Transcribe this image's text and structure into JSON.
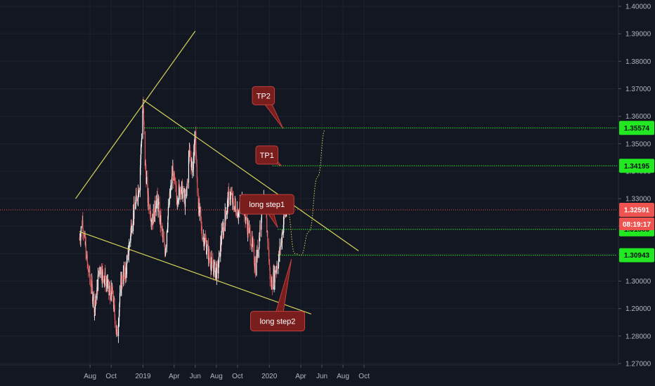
{
  "colors": {
    "background": "#131722",
    "grid": "#1e222d",
    "up": "#ffffff",
    "down": "#e05a5a",
    "trendline": "#d4d45a",
    "level_line": "#2ee62e",
    "price_line": "#ef5350",
    "callout_fill": "#7a1d1d",
    "callout_stroke": "#c04040",
    "badge_green": "#22e822",
    "badge_red": "#ef5350",
    "axis_text": "#b2b5be"
  },
  "chart_data": {
    "type": "candlestick",
    "y_axis_labels": [
      "1.40000",
      "1.39000",
      "1.38000",
      "1.37000",
      "1.36000",
      "1.35000",
      "1.34000",
      "1.33000",
      "1.32000",
      "1.31000",
      "1.30000",
      "1.29000",
      "1.28000",
      "1.27000"
    ],
    "x_axis_labels": [
      "Aug",
      "Oct",
      "2019",
      "Apr",
      "Jun",
      "Aug",
      "Oct",
      "2020",
      "Apr",
      "Jun",
      "Aug",
      "Oct"
    ],
    "ylim": [
      1.27,
      1.4
    ],
    "price_path": [
      [
        "2018-07-01",
        1.315
      ],
      [
        "2018-07-10",
        1.322
      ],
      [
        "2018-07-25",
        1.305
      ],
      [
        "2018-08-05",
        1.298
      ],
      [
        "2018-08-15",
        1.29
      ],
      [
        "2018-08-28",
        1.305
      ],
      [
        "2018-09-10",
        1.302
      ],
      [
        "2018-09-25",
        1.296
      ],
      [
        "2018-10-05",
        1.295
      ],
      [
        "2018-10-18",
        1.28
      ],
      [
        "2018-10-30",
        1.3
      ],
      [
        "2018-11-15",
        1.305
      ],
      [
        "2018-11-28",
        1.32
      ],
      [
        "2018-12-10",
        1.328
      ],
      [
        "2018-12-22",
        1.336
      ],
      [
        "2019-01-01",
        1.365
      ],
      [
        "2019-01-06",
        1.345
      ],
      [
        "2019-01-15",
        1.33
      ],
      [
        "2019-01-28",
        1.322
      ],
      [
        "2019-02-10",
        1.33
      ],
      [
        "2019-02-25",
        1.318
      ],
      [
        "2019-03-05",
        1.31
      ],
      [
        "2019-03-15",
        1.325
      ],
      [
        "2019-03-28",
        1.34
      ],
      [
        "2019-04-08",
        1.33
      ],
      [
        "2019-04-20",
        1.335
      ],
      [
        "2019-05-05",
        1.328
      ],
      [
        "2019-05-15",
        1.348
      ],
      [
        "2019-05-25",
        1.34
      ],
      [
        "2019-06-01",
        1.355
      ],
      [
        "2019-06-08",
        1.33
      ],
      [
        "2019-06-20",
        1.318
      ],
      [
        "2019-07-05",
        1.312
      ],
      [
        "2019-07-20",
        1.305
      ],
      [
        "2019-08-05",
        1.303
      ],
      [
        "2019-08-15",
        1.315
      ],
      [
        "2019-08-28",
        1.325
      ],
      [
        "2019-09-08",
        1.332
      ],
      [
        "2019-09-20",
        1.328
      ],
      [
        "2019-10-05",
        1.325
      ],
      [
        "2019-10-15",
        1.33
      ],
      [
        "2019-10-30",
        1.32
      ],
      [
        "2019-11-10",
        1.315
      ],
      [
        "2019-11-22",
        1.305
      ],
      [
        "2019-12-02",
        1.315
      ],
      [
        "2019-12-12",
        1.33
      ],
      [
        "2019-12-22",
        1.325
      ],
      [
        "2019-12-30",
        1.31
      ],
      [
        "2020-01-05",
        1.298
      ],
      [
        "2020-01-15",
        1.302
      ],
      [
        "2020-01-28",
        1.308
      ],
      [
        "2020-02-05",
        1.315
      ],
      [
        "2020-02-15",
        1.325
      ],
      [
        "2020-02-22",
        1.3259
      ]
    ],
    "trendlines": [
      {
        "from": [
          "2018-06-20",
          1.33
        ],
        "to": [
          "2019-06-01",
          1.391
        ]
      },
      {
        "from": [
          "2019-01-01",
          1.366
        ],
        "to": [
          "2020-09-15",
          1.311
        ]
      },
      {
        "from": [
          "2018-07-01",
          1.318
        ],
        "to": [
          "2020-05-01",
          1.288
        ]
      }
    ],
    "projection": [
      [
        "2020-02-22",
        1.3259
      ],
      [
        "2020-03-15",
        1.31
      ],
      [
        "2020-04-01",
        1.3094
      ],
      [
        "2020-04-25",
        1.318
      ],
      [
        "2020-05-20",
        1.338
      ],
      [
        "2020-06-10",
        1.355
      ]
    ],
    "levels": [
      {
        "price": 1.35574,
        "label": "1.35574",
        "from": "2019-01-05"
      },
      {
        "price": 1.34195,
        "label": "1.34195",
        "from": "2020-01-10"
      },
      {
        "price": 1.31885,
        "label": "1.31885",
        "from": "2020-01-25"
      },
      {
        "price": 1.30943,
        "label": "1.30943",
        "from": "2020-01-25"
      }
    ],
    "current_price": {
      "price": 1.32591,
      "label": "1.32591",
      "countdown": "08:19:17"
    },
    "annotations": [
      {
        "text": "TP2",
        "anchor": [
          "2019-12-15",
          1.3708
        ],
        "target": [
          "2020-02-10",
          1.3555
        ]
      },
      {
        "text": "TP1",
        "anchor": [
          "2019-12-25",
          1.3492
        ],
        "target": [
          "2020-02-05",
          1.3419
        ]
      },
      {
        "text": "long step1",
        "anchor": [
          "2019-12-25",
          1.3315
        ],
        "target": [
          "2020-01-25",
          1.3195
        ]
      },
      {
        "text": "long step2",
        "anchor": [
          "2020-01-25",
          1.289
        ],
        "target": [
          "2020-03-05",
          1.308
        ]
      }
    ]
  }
}
